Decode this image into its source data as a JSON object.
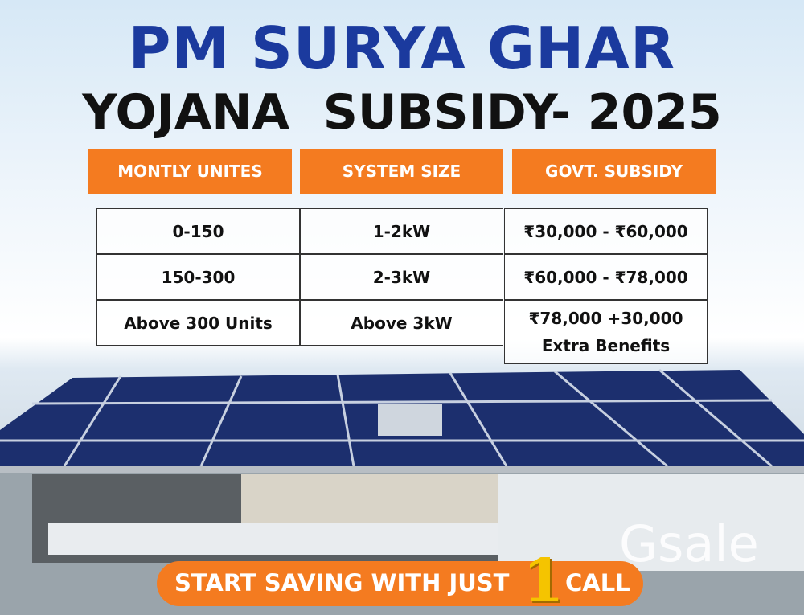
{
  "header": {
    "title": "PM SURYA GHAR",
    "subtitle": "YOJANA  SUBSIDY- 2025"
  },
  "table": {
    "headers": [
      "MONTLY UNITES",
      "SYSTEM SIZE",
      "GOVT.  SUBSIDY"
    ],
    "rows": [
      [
        "0-150",
        "1-2kW",
        "₹30,000 - ₹60,000"
      ],
      [
        "150-300",
        "2-3kW",
        "₹60,000 - ₹78,000"
      ],
      [
        "Above 300 Units",
        "Above 3kW",
        "₹78,000 +30,000\nExtra Benefits"
      ]
    ]
  },
  "cta": {
    "text": "START SAVING WITH JUST",
    "number": "1",
    "suffix": "CALL"
  },
  "watermark": "Gsale"
}
